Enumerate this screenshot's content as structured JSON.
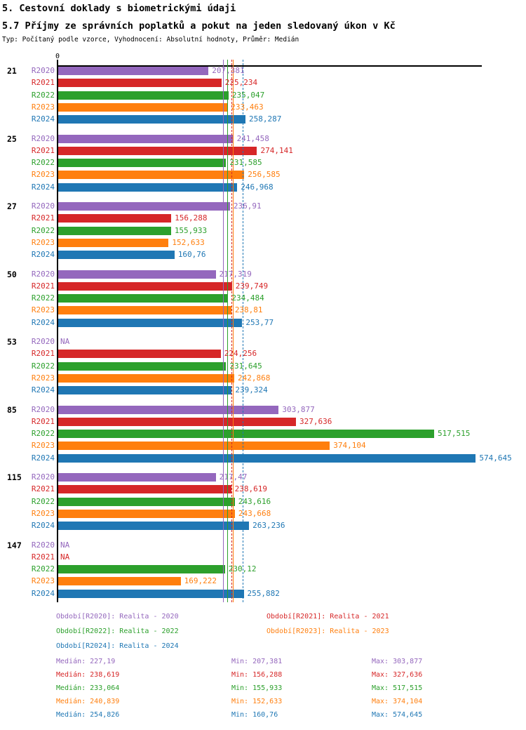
{
  "chart_data": {
    "type": "bar",
    "orientation": "horizontal",
    "title": "5. Cestovní doklady s biometrickými údaji",
    "subtitle": "5.7 Příjmy ze správních poplatků a pokut na jeden sledovaný úkon v Kč",
    "meta": "Typ: Počítaný podle vzorce, Vyhodnocení: Absolutní hodnoty, Průměr: Medián",
    "unit": "Kč",
    "xlim": [
      0,
      583
    ],
    "axis_origin_label": "0",
    "years": [
      {
        "label": "R2020",
        "color": "#9467bd"
      },
      {
        "label": "R2021",
        "color": "#d62728"
      },
      {
        "label": "R2022",
        "color": "#2ca02c"
      },
      {
        "label": "R2023",
        "color": "#ff7f0e"
      },
      {
        "label": "R2024",
        "color": "#1f77b4"
      }
    ],
    "groups": [
      {
        "label": "21",
        "bars": [
          {
            "value": 207.381,
            "display": "207,381"
          },
          {
            "value": 225.234,
            "display": "225,234"
          },
          {
            "value": 235.047,
            "display": "235,047"
          },
          {
            "value": 233.463,
            "display": "233,463"
          },
          {
            "value": 258.287,
            "display": "258,287"
          }
        ]
      },
      {
        "label": "25",
        "bars": [
          {
            "value": 241.458,
            "display": "241,458"
          },
          {
            "value": 274.141,
            "display": "274,141"
          },
          {
            "value": 231.585,
            "display": "231,585"
          },
          {
            "value": 256.585,
            "display": "256,585"
          },
          {
            "value": 246.968,
            "display": "246,968"
          }
        ]
      },
      {
        "label": "27",
        "bars": [
          {
            "value": 236.91,
            "display": "236,91"
          },
          {
            "value": 156.288,
            "display": "156,288"
          },
          {
            "value": 155.933,
            "display": "155,933"
          },
          {
            "value": 152.633,
            "display": "152,633"
          },
          {
            "value": 160.76,
            "display": "160,76"
          }
        ]
      },
      {
        "label": "50",
        "bars": [
          {
            "value": 217.319,
            "display": "217,319"
          },
          {
            "value": 239.749,
            "display": "239,749"
          },
          {
            "value": 234.484,
            "display": "234,484"
          },
          {
            "value": 238.81,
            "display": "238,81"
          },
          {
            "value": 253.77,
            "display": "253,77"
          }
        ]
      },
      {
        "label": "53",
        "bars": [
          {
            "value": null,
            "display": "NA"
          },
          {
            "value": 224.256,
            "display": "224,256"
          },
          {
            "value": 231.645,
            "display": "231,645"
          },
          {
            "value": 242.868,
            "display": "242,868"
          },
          {
            "value": 239.324,
            "display": "239,324"
          }
        ]
      },
      {
        "label": "85",
        "bars": [
          {
            "value": 303.877,
            "display": "303,877"
          },
          {
            "value": 327.636,
            "display": "327,636"
          },
          {
            "value": 517.515,
            "display": "517,515"
          },
          {
            "value": 374.104,
            "display": "374,104"
          },
          {
            "value": 574.645,
            "display": "574,645"
          }
        ]
      },
      {
        "label": "115",
        "bars": [
          {
            "value": 217.47,
            "display": "217,47"
          },
          {
            "value": 238.619,
            "display": "238,619"
          },
          {
            "value": 243.616,
            "display": "243,616"
          },
          {
            "value": 243.668,
            "display": "243,668"
          },
          {
            "value": 263.236,
            "display": "263,236"
          }
        ]
      },
      {
        "label": "147",
        "bars": [
          {
            "value": null,
            "display": "NA"
          },
          {
            "value": null,
            "display": "NA"
          },
          {
            "value": 230.12,
            "display": "230,12"
          },
          {
            "value": 169.222,
            "display": "169,222"
          },
          {
            "value": 255.882,
            "display": "255,882"
          }
        ]
      }
    ],
    "median_lines": [
      {
        "series": "R2020",
        "value": 227.19,
        "color": "#9467bd",
        "dashed": false
      },
      {
        "series": "R2021",
        "value": 238.619,
        "color": "#d62728",
        "dashed": true
      },
      {
        "series": "R2022",
        "value": 233.064,
        "color": "#2ca02c",
        "dashed": false
      },
      {
        "series": "R2023",
        "value": 240.839,
        "color": "#ff7f0e",
        "dashed": false
      },
      {
        "series": "R2024",
        "value": 254.826,
        "color": "#1f77b4",
        "dashed": true
      }
    ],
    "legend": [
      {
        "label": "Období[R2020]: Realita - 2020",
        "color": "#9467bd"
      },
      {
        "label": "Období[R2021]: Realita - 2021",
        "color": "#d62728"
      },
      {
        "label": "Období[R2022]: Realita - 2022",
        "color": "#2ca02c"
      },
      {
        "label": "Období[R2023]: Realita - 2023",
        "color": "#ff7f0e"
      },
      {
        "label": "Období[R2024]: Realita - 2024",
        "color": "#1f77b4"
      }
    ],
    "stats": [
      {
        "color": "#9467bd",
        "median": "Medián: 227,19",
        "min": "Min: 207,381",
        "max": "Max: 303,877"
      },
      {
        "color": "#d62728",
        "median": "Medián: 238,619",
        "min": "Min: 156,288",
        "max": "Max: 327,636"
      },
      {
        "color": "#2ca02c",
        "median": "Medián: 233,064",
        "min": "Min: 155,933",
        "max": "Max: 517,515"
      },
      {
        "color": "#ff7f0e",
        "median": "Medián: 240,839",
        "min": "Min: 152,633",
        "max": "Max: 374,104"
      },
      {
        "color": "#1f77b4",
        "median": "Medián: 254,826",
        "min": "Min: 160,76",
        "max": "Max: 574,645"
      }
    ]
  }
}
